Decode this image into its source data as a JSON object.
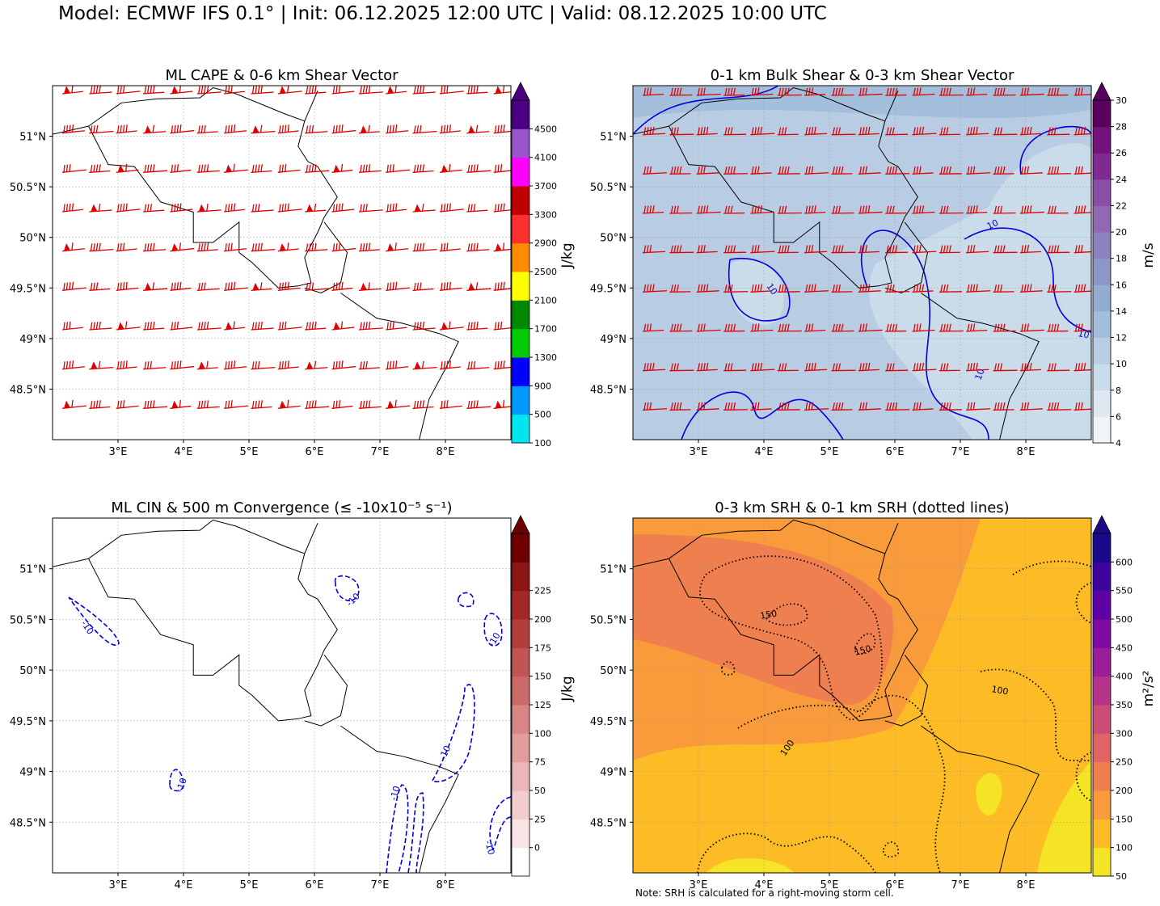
{
  "title": "Model: ECMWF IFS 0.1° | Init: 06.12.2025 12:00 UTC | Valid: 08.12.2025 10:00 UTC",
  "note": "Note: SRH is calculated for a right-moving storm cell.",
  "colors": {
    "barb": "#e00000",
    "contour_blue": "#0000dd",
    "contour_black": "#000000",
    "border": "#000000"
  },
  "chart_data": [
    {
      "type": "heatmap",
      "title": "ML CAPE & 0-6 km Shear Vector",
      "xlabel": "",
      "ylabel": "",
      "xlim": [
        2.0,
        9.0
      ],
      "ylim": [
        48.0,
        51.5
      ],
      "x_ticks": [
        "3°E",
        "4°E",
        "5°E",
        "6°E",
        "7°E",
        "8°E"
      ],
      "y_ticks": [
        "51°N",
        "50.5°N",
        "50°N",
        "49.5°N",
        "49°N",
        "48.5°N"
      ],
      "grid": true,
      "field": "none visible (all below 100 J/kg)",
      "overlay": "wind barbs (shear vector), red",
      "colorbar": {
        "label": "J/kg",
        "ticks": [
          "100",
          "500",
          "900",
          "1300",
          "1700",
          "2100",
          "2500",
          "2900",
          "3300",
          "3700",
          "4100",
          "4500"
        ],
        "colors": [
          "#00e5ee",
          "#0099ff",
          "#0000ff",
          "#00cc00",
          "#008800",
          "#ffff00",
          "#ff8c00",
          "#ff3030",
          "#c00000",
          "#ff00ff",
          "#9955cc",
          "#4b0082"
        ],
        "extend": "max"
      }
    },
    {
      "type": "heatmap",
      "title": "0-1 km Bulk Shear & 0-3 km Shear Vector",
      "xlabel": "",
      "ylabel": "",
      "xlim": [
        2.0,
        9.0
      ],
      "ylim": [
        48.0,
        51.5
      ],
      "x_ticks": [
        "3°E",
        "4°E",
        "5°E",
        "6°E",
        "7°E",
        "8°E"
      ],
      "y_ticks": [
        "51°N",
        "50.5°N",
        "50°N",
        "49.5°N",
        "49°N",
        "48.5°N"
      ],
      "grid": true,
      "field": "0-1 km bulk shear, mostly 10-14 m/s",
      "overlay": "wind barbs red, blue contour 10 m/s",
      "contour_labels": [
        "10",
        "10",
        "10",
        "10"
      ],
      "colorbar": {
        "label": "m/s",
        "ticks": [
          "4",
          "6",
          "8",
          "10",
          "12",
          "14",
          "16",
          "18",
          "20",
          "22",
          "24",
          "26",
          "28",
          "30"
        ],
        "colors": [
          "#f0f4f9",
          "#dfe8f2",
          "#cadbea",
          "#b8cde4",
          "#a3bfdc",
          "#93acd3",
          "#8d96c8",
          "#8c82be",
          "#8f69b2",
          "#8a4fa4",
          "#7e2a92",
          "#72127c",
          "#5a005e"
        ],
        "extend": "max"
      }
    },
    {
      "type": "heatmap",
      "title": "ML CIN & 500 m Convergence (≤ -10x10⁻⁵ s⁻¹)",
      "xlabel": "",
      "ylabel": "",
      "xlim": [
        2.0,
        9.0
      ],
      "ylim": [
        48.0,
        51.5
      ],
      "x_ticks": [
        "3°E",
        "4°E",
        "5°E",
        "6°E",
        "7°E",
        "8°E"
      ],
      "y_ticks": [
        "51°N",
        "50.5°N",
        "50°N",
        "49.5°N",
        "49°N",
        "48.5°N"
      ],
      "grid": true,
      "field": "CIN near 0",
      "overlay": "dashed blue convergence contour -10",
      "contour_labels": [
        "-10",
        "-10",
        "-10",
        "-10",
        "-10",
        "-10",
        "-10"
      ],
      "colorbar": {
        "label": "J/kg",
        "ticks": [
          "0",
          "25",
          "50",
          "75",
          "100",
          "125",
          "150",
          "175",
          "200",
          "225"
        ],
        "colors": [
          "#ffffff",
          "#f8e4e4",
          "#f1cdcd",
          "#ebb6b6",
          "#e29c9c",
          "#d88585",
          "#cc6a6a",
          "#c15555",
          "#b33d3d",
          "#a32727",
          "#8c1515",
          "#6e0000"
        ],
        "extend": "max"
      }
    },
    {
      "type": "heatmap",
      "title": "0-3 km SRH & 0-1 km SRH (dotted lines)",
      "xlabel": "",
      "ylabel": "",
      "xlim": [
        2.0,
        9.0
      ],
      "ylim": [
        48.0,
        51.5
      ],
      "x_ticks": [
        "3°E",
        "4°E",
        "5°E",
        "6°E",
        "7°E",
        "8°E"
      ],
      "y_ticks": [
        "51°N",
        "50.5°N",
        "50°N",
        "49.5°N",
        "49°N",
        "48.5°N"
      ],
      "grid": true,
      "field": "0-3 km SRH 100-250 m²/s²",
      "overlay": "dotted black 0-1 km SRH contours",
      "contour_labels": [
        "150",
        "150",
        "100",
        "100"
      ],
      "colorbar": {
        "label": "m²/s²",
        "ticks": [
          "50",
          "100",
          "150",
          "200",
          "250",
          "300",
          "350",
          "400",
          "450",
          "500",
          "550",
          "600"
        ],
        "colors": [
          "#f5e326",
          "#fdbb26",
          "#f99b3a",
          "#f07f4f",
          "#e06463",
          "#cc4c78",
          "#b5348a",
          "#9b1d98",
          "#7e0aa2",
          "#5f02a5",
          "#3c049c",
          "#1a0a8a"
        ],
        "extend": "max"
      }
    }
  ]
}
